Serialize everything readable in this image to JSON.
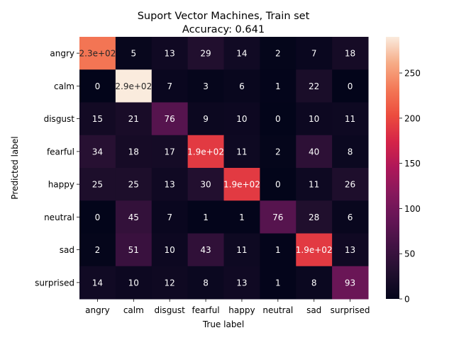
{
  "chart_data": {
    "type": "heatmap",
    "title": "Suport Vector Machines, Train set",
    "subtitle": "Accuracy: 0.641",
    "xlabel": "True label",
    "ylabel": "Predicted label",
    "x_categories": [
      "angry",
      "calm",
      "disgust",
      "fearful",
      "happy",
      "neutral",
      "sad",
      "surprised"
    ],
    "y_categories": [
      "angry",
      "calm",
      "disgust",
      "fearful",
      "happy",
      "neutral",
      "sad",
      "surprised"
    ],
    "values": [
      [
        230,
        5,
        13,
        29,
        14,
        2,
        7,
        18
      ],
      [
        0,
        290,
        7,
        3,
        6,
        1,
        22,
        0
      ],
      [
        15,
        21,
        76,
        9,
        10,
        0,
        10,
        11
      ],
      [
        34,
        18,
        17,
        190,
        11,
        2,
        40,
        8
      ],
      [
        25,
        25,
        13,
        30,
        190,
        0,
        11,
        26
      ],
      [
        0,
        45,
        7,
        1,
        1,
        76,
        28,
        6
      ],
      [
        2,
        51,
        10,
        43,
        11,
        1,
        190,
        13
      ],
      [
        14,
        10,
        12,
        8,
        13,
        1,
        8,
        93
      ]
    ],
    "cell_labels": [
      [
        "2.3e+02",
        "5",
        "13",
        "29",
        "14",
        "2",
        "7",
        "18"
      ],
      [
        "0",
        "2.9e+02",
        "7",
        "3",
        "6",
        "1",
        "22",
        "0"
      ],
      [
        "15",
        "21",
        "76",
        "9",
        "10",
        "0",
        "10",
        "11"
      ],
      [
        "34",
        "18",
        "17",
        "1.9e+02",
        "11",
        "2",
        "40",
        "8"
      ],
      [
        "25",
        "25",
        "13",
        "30",
        "1.9e+02",
        "0",
        "11",
        "26"
      ],
      [
        "0",
        "45",
        "7",
        "1",
        "1",
        "76",
        "28",
        "6"
      ],
      [
        "2",
        "51",
        "10",
        "43",
        "11",
        "1",
        "1.9e+02",
        "13"
      ],
      [
        "14",
        "10",
        "12",
        "8",
        "13",
        "1",
        "8",
        "93"
      ]
    ],
    "colorbar": {
      "min": 0,
      "max": 290,
      "ticks": [
        0,
        50,
        100,
        150,
        200,
        250
      ],
      "colormap": "rocket"
    },
    "grid": false
  }
}
